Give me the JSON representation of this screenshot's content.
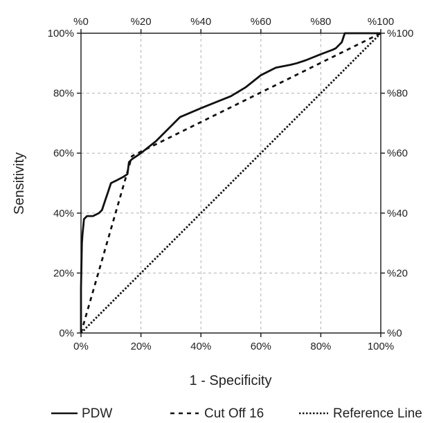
{
  "chart_data": {
    "type": "line",
    "xlabel": "1 - Specificity",
    "ylabel": "Sensitivity",
    "x_ticks": [
      "0%",
      "20%",
      "40%",
      "60%",
      "80%",
      "100%"
    ],
    "y_ticks": [
      "0%",
      "20%",
      "40%",
      "60%",
      "80%",
      "100%"
    ],
    "x2_ticks": [
      "%0",
      "%20",
      "%40",
      "%60",
      "%80",
      "%100"
    ],
    "y2_ticks": [
      "%0",
      "%20",
      "%40",
      "%60",
      "%80",
      "%100"
    ],
    "xlim": [
      0,
      1
    ],
    "ylim": [
      0,
      1
    ],
    "grid": true,
    "legend_position": "bottom",
    "colors": {
      "axis": "#222222",
      "grid": "#b0b0b0",
      "line": "#111111"
    },
    "series": [
      {
        "name": "PDW",
        "style": "solid",
        "x": [
          0.0,
          0.0,
          0.003,
          0.005,
          0.008,
          0.01,
          0.02,
          0.04,
          0.06,
          0.07,
          0.08,
          0.09,
          0.1,
          0.12,
          0.14,
          0.155,
          0.16,
          0.17,
          0.2,
          0.25,
          0.3,
          0.33,
          0.4,
          0.45,
          0.5,
          0.55,
          0.6,
          0.65,
          0.7,
          0.72,
          0.75,
          0.8,
          0.84,
          0.85,
          0.86,
          0.87,
          0.88,
          0.9,
          0.95,
          1.0
        ],
        "y": [
          0.0,
          0.15,
          0.3,
          0.33,
          0.36,
          0.38,
          0.39,
          0.39,
          0.4,
          0.41,
          0.44,
          0.47,
          0.5,
          0.51,
          0.52,
          0.53,
          0.57,
          0.58,
          0.6,
          0.64,
          0.69,
          0.72,
          0.75,
          0.77,
          0.79,
          0.82,
          0.86,
          0.885,
          0.895,
          0.9,
          0.91,
          0.93,
          0.945,
          0.95,
          0.96,
          0.97,
          1.0,
          1.0,
          1.0,
          1.0
        ]
      },
      {
        "name": "Cut Off 16",
        "style": "dashed",
        "x": [
          0.0,
          0.17,
          1.0
        ],
        "y": [
          0.0,
          0.59,
          1.0
        ]
      },
      {
        "name": "Reference Line",
        "style": "dotted",
        "x": [
          0.0,
          1.0
        ],
        "y": [
          0.0,
          1.0
        ]
      }
    ]
  }
}
